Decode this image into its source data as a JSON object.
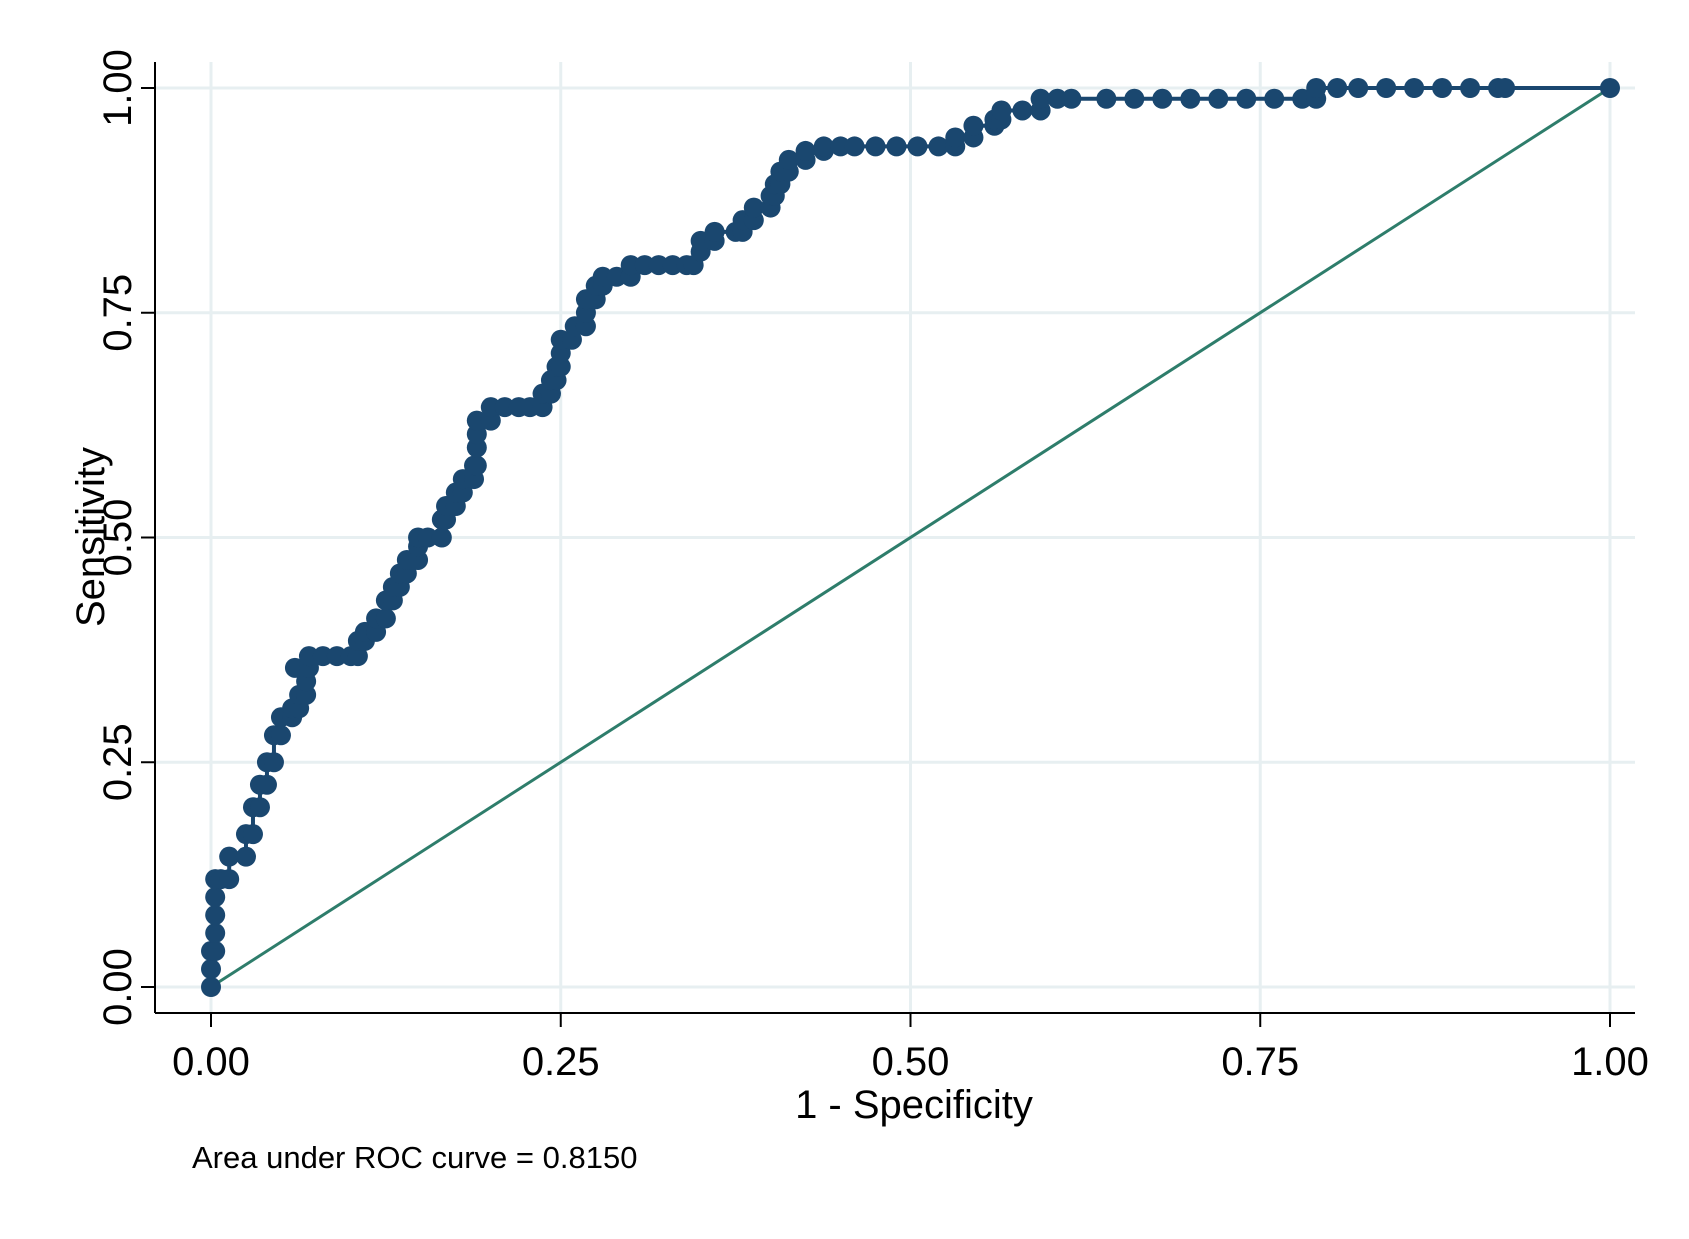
{
  "chart_data": {
    "type": "line",
    "title": "",
    "xlabel": "1 - Specificity",
    "ylabel": "Sensitivity",
    "xlim": [
      0,
      1
    ],
    "ylim": [
      0,
      1
    ],
    "xticks": [
      "0.00",
      "0.25",
      "0.50",
      "0.75",
      "1.00"
    ],
    "yticks": [
      "0.00",
      "0.25",
      "0.50",
      "0.75",
      "1.00"
    ],
    "grid": true,
    "legend": "none",
    "note": "Area under ROC curve = 0.8150",
    "colors": {
      "roc": "#1a476f",
      "reference": "#2e7d6b",
      "grid": "#e7eff1",
      "axis": "#000000"
    },
    "series": [
      {
        "role": "roc",
        "markers": true,
        "points": [
          [
            0.0,
            0.0
          ],
          [
            0.0,
            0.02
          ],
          [
            0.0,
            0.04
          ],
          [
            0.003,
            0.04
          ],
          [
            0.003,
            0.06
          ],
          [
            0.003,
            0.08
          ],
          [
            0.003,
            0.1
          ],
          [
            0.003,
            0.12
          ],
          [
            0.007,
            0.12
          ],
          [
            0.013,
            0.12
          ],
          [
            0.013,
            0.145
          ],
          [
            0.025,
            0.145
          ],
          [
            0.025,
            0.17
          ],
          [
            0.03,
            0.17
          ],
          [
            0.03,
            0.2
          ],
          [
            0.035,
            0.2
          ],
          [
            0.035,
            0.225
          ],
          [
            0.04,
            0.225
          ],
          [
            0.04,
            0.25
          ],
          [
            0.045,
            0.25
          ],
          [
            0.045,
            0.28
          ],
          [
            0.05,
            0.28
          ],
          [
            0.05,
            0.3
          ],
          [
            0.058,
            0.3
          ],
          [
            0.058,
            0.31
          ],
          [
            0.063,
            0.31
          ],
          [
            0.063,
            0.325
          ],
          [
            0.068,
            0.325
          ],
          [
            0.068,
            0.34
          ],
          [
            0.06,
            0.355
          ],
          [
            0.07,
            0.355
          ],
          [
            0.07,
            0.368
          ],
          [
            0.08,
            0.368
          ],
          [
            0.09,
            0.368
          ],
          [
            0.1,
            0.368
          ],
          [
            0.105,
            0.368
          ],
          [
            0.105,
            0.385
          ],
          [
            0.11,
            0.385
          ],
          [
            0.11,
            0.395
          ],
          [
            0.118,
            0.395
          ],
          [
            0.118,
            0.41
          ],
          [
            0.125,
            0.41
          ],
          [
            0.125,
            0.43
          ],
          [
            0.13,
            0.43
          ],
          [
            0.13,
            0.445
          ],
          [
            0.135,
            0.445
          ],
          [
            0.135,
            0.46
          ],
          [
            0.14,
            0.46
          ],
          [
            0.14,
            0.475
          ],
          [
            0.148,
            0.475
          ],
          [
            0.148,
            0.49
          ],
          [
            0.148,
            0.5
          ],
          [
            0.155,
            0.5
          ],
          [
            0.165,
            0.5
          ],
          [
            0.165,
            0.52
          ],
          [
            0.168,
            0.52
          ],
          [
            0.168,
            0.535
          ],
          [
            0.175,
            0.535
          ],
          [
            0.175,
            0.55
          ],
          [
            0.18,
            0.55
          ],
          [
            0.18,
            0.565
          ],
          [
            0.188,
            0.565
          ],
          [
            0.188,
            0.58
          ],
          [
            0.19,
            0.58
          ],
          [
            0.19,
            0.6
          ],
          [
            0.19,
            0.615
          ],
          [
            0.19,
            0.63
          ],
          [
            0.2,
            0.63
          ],
          [
            0.2,
            0.645
          ],
          [
            0.21,
            0.645
          ],
          [
            0.22,
            0.645
          ],
          [
            0.228,
            0.645
          ],
          [
            0.237,
            0.645
          ],
          [
            0.237,
            0.66
          ],
          [
            0.243,
            0.66
          ],
          [
            0.243,
            0.675
          ],
          [
            0.247,
            0.675
          ],
          [
            0.247,
            0.69
          ],
          [
            0.25,
            0.69
          ],
          [
            0.25,
            0.705
          ],
          [
            0.25,
            0.72
          ],
          [
            0.258,
            0.72
          ],
          [
            0.26,
            0.735
          ],
          [
            0.268,
            0.735
          ],
          [
            0.268,
            0.75
          ],
          [
            0.268,
            0.765
          ],
          [
            0.275,
            0.765
          ],
          [
            0.275,
            0.78
          ],
          [
            0.28,
            0.78
          ],
          [
            0.28,
            0.79
          ],
          [
            0.29,
            0.79
          ],
          [
            0.3,
            0.79
          ],
          [
            0.3,
            0.803
          ],
          [
            0.31,
            0.803
          ],
          [
            0.32,
            0.803
          ],
          [
            0.33,
            0.803
          ],
          [
            0.34,
            0.803
          ],
          [
            0.345,
            0.803
          ],
          [
            0.35,
            0.818
          ],
          [
            0.35,
            0.83
          ],
          [
            0.36,
            0.83
          ],
          [
            0.36,
            0.84
          ],
          [
            0.375,
            0.84
          ],
          [
            0.38,
            0.84
          ],
          [
            0.38,
            0.853
          ],
          [
            0.388,
            0.853
          ],
          [
            0.388,
            0.867
          ],
          [
            0.4,
            0.867
          ],
          [
            0.4,
            0.88
          ],
          [
            0.403,
            0.88
          ],
          [
            0.403,
            0.893
          ],
          [
            0.407,
            0.893
          ],
          [
            0.407,
            0.907
          ],
          [
            0.413,
            0.907
          ],
          [
            0.413,
            0.92
          ],
          [
            0.425,
            0.92
          ],
          [
            0.425,
            0.93
          ],
          [
            0.438,
            0.93
          ],
          [
            0.438,
            0.935
          ],
          [
            0.45,
            0.935
          ],
          [
            0.46,
            0.935
          ],
          [
            0.475,
            0.935
          ],
          [
            0.49,
            0.935
          ],
          [
            0.505,
            0.935
          ],
          [
            0.52,
            0.935
          ],
          [
            0.532,
            0.935
          ],
          [
            0.532,
            0.945
          ],
          [
            0.545,
            0.945
          ],
          [
            0.545,
            0.958
          ],
          [
            0.56,
            0.958
          ],
          [
            0.56,
            0.965
          ],
          [
            0.565,
            0.965
          ],
          [
            0.565,
            0.975
          ],
          [
            0.58,
            0.975
          ],
          [
            0.593,
            0.975
          ],
          [
            0.593,
            0.988
          ],
          [
            0.605,
            0.988
          ],
          [
            0.615,
            0.988
          ],
          [
            0.64,
            0.988
          ],
          [
            0.66,
            0.988
          ],
          [
            0.68,
            0.988
          ],
          [
            0.7,
            0.988
          ],
          [
            0.72,
            0.988
          ],
          [
            0.74,
            0.988
          ],
          [
            0.76,
            0.988
          ],
          [
            0.78,
            0.988
          ],
          [
            0.79,
            0.988
          ],
          [
            0.79,
            1.0
          ],
          [
            0.805,
            1.0
          ],
          [
            0.82,
            1.0
          ],
          [
            0.84,
            1.0
          ],
          [
            0.86,
            1.0
          ],
          [
            0.88,
            1.0
          ],
          [
            0.9,
            1.0
          ],
          [
            0.92,
            1.0
          ],
          [
            0.925,
            1.0
          ],
          [
            1.0,
            1.0
          ]
        ]
      },
      {
        "role": "reference",
        "markers": false,
        "points": [
          [
            0.0,
            0.0
          ],
          [
            1.0,
            1.0
          ]
        ]
      }
    ]
  }
}
